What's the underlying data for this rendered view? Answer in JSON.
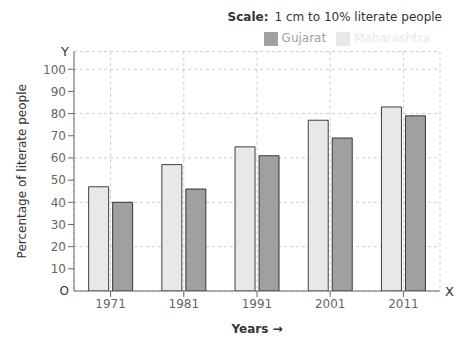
{
  "chart_data": {
    "type": "bar",
    "categories": [
      "1971",
      "1981",
      "1991",
      "2001",
      "2011"
    ],
    "series": [
      {
        "name": "Maharashtra",
        "color": "#e8e8e8",
        "values": [
          47,
          57,
          65,
          77,
          83
        ]
      },
      {
        "name": "Gujarat",
        "color": "#a0a0a0",
        "values": [
          40,
          46,
          61,
          69,
          79
        ]
      }
    ],
    "xlabel": "Years  →",
    "ylabel": "Percentage of literate people",
    "ylim": [
      0,
      108
    ],
    "yticks": [
      10,
      20,
      30,
      40,
      50,
      60,
      70,
      80,
      90,
      100
    ],
    "grid": true,
    "legend": "upper right",
    "annotations": [
      "Scale:",
      "1 cm to 10% literate people",
      "Y",
      "X",
      "O"
    ]
  }
}
